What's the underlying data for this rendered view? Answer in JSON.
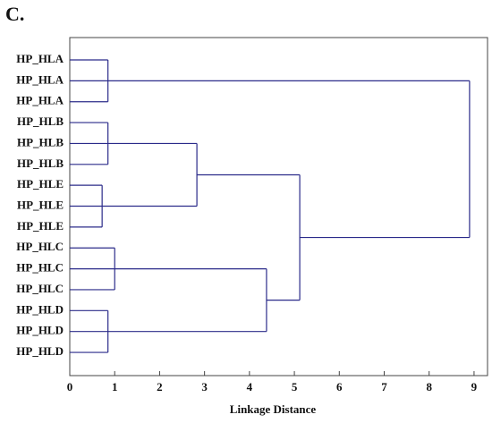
{
  "chart_data": {
    "type": "dendrogram",
    "title": "C.",
    "x_label": "Linkage Distance",
    "xlim": [
      0,
      9.3
    ],
    "xticks": [
      0,
      1,
      2,
      3,
      4,
      5,
      6,
      7,
      8,
      9
    ],
    "color": "#2b2b8a",
    "tree": {
      "height": 8.9,
      "children": [
        {
          "height": 0.85,
          "children": [
            "HP_HLA",
            "HP_HLA",
            "HP_HLA"
          ]
        },
        {
          "height": 5.12,
          "children": [
            {
              "height": 2.83,
              "children": [
                {
                  "height": 0.85,
                  "children": [
                    "HP_HLB",
                    "HP_HLB",
                    "HP_HLB"
                  ]
                },
                {
                  "height": 0.72,
                  "children": [
                    "HP_HLE",
                    "HP_HLE",
                    "HP_HLE"
                  ]
                }
              ]
            },
            {
              "height": 4.38,
              "children": [
                {
                  "height": 1.0,
                  "children": [
                    "HP_HLC",
                    "HP_HLC",
                    "HP_HLC"
                  ]
                },
                {
                  "height": 0.85,
                  "children": [
                    "HP_HLD",
                    "HP_HLD",
                    "HP_HLD"
                  ]
                }
              ]
            }
          ]
        }
      ]
    }
  }
}
